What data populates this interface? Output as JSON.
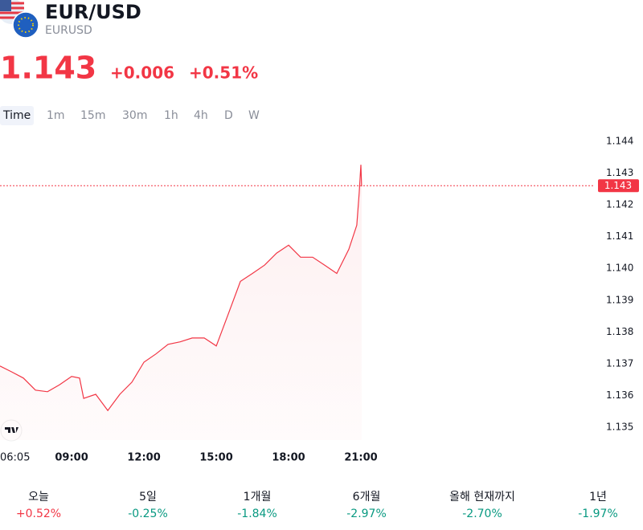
{
  "header": {
    "title": "EUR/USD",
    "symbol": "EURUSD",
    "price": "1.143",
    "change": "+0.006",
    "change_pct": "+0.51%"
  },
  "intervals": [
    "Time",
    "1m",
    "15m",
    "30m",
    "1h",
    "4h",
    "D",
    "W"
  ],
  "chart_data": {
    "type": "line",
    "x": [
      6.03,
      6.5,
      7,
      7.5,
      8,
      8.5,
      9,
      9.33,
      9.5,
      10,
      10.5,
      11,
      11.5,
      12,
      12.5,
      13,
      13.5,
      14,
      14.5,
      15,
      15.5,
      16,
      16.5,
      17,
      17.5,
      18,
      18.5,
      19,
      19.5,
      20,
      20.5,
      20.83,
      20.93,
      21.0,
      21.03
    ],
    "series": [
      {
        "color": "#f23645",
        "values": [
          1.13693,
          1.13675,
          1.13655,
          1.13617,
          1.13612,
          1.13634,
          1.1366,
          1.13655,
          1.13591,
          1.13604,
          1.13553,
          1.13604,
          1.13642,
          1.13705,
          1.13731,
          1.13761,
          1.13769,
          1.13781,
          1.13781,
          1.13756,
          1.13857,
          1.13959,
          1.13984,
          1.1401,
          1.14048,
          1.14073,
          1.14035,
          1.14035,
          1.1401,
          1.13984,
          1.1406,
          1.14136,
          1.14238,
          1.14326,
          1.14258
        ]
      }
    ],
    "xlim": [
      6.03,
      30.7
    ],
    "xticks": [
      {
        "value": 6.0833,
        "label": "06:05"
      },
      {
        "value": 9,
        "label": "09:00"
      },
      {
        "value": 12,
        "label": "12:00"
      },
      {
        "value": 15,
        "label": "15:00"
      },
      {
        "value": 18,
        "label": "18:00"
      },
      {
        "value": 21,
        "label": "21:00"
      }
    ],
    "ylim": [
      1.1346,
      1.1444
    ],
    "yticks": [
      1.135,
      1.136,
      1.137,
      1.138,
      1.139,
      {
        "value": 1.14,
        "label": "1.140"
      },
      1.141,
      1.142,
      1.143,
      1.144
    ],
    "last_value": 1.1426,
    "last_value_label": "1.143"
  },
  "periods": [
    {
      "label": "오늘",
      "change": "+0.52%"
    },
    {
      "label": "5일",
      "change": "-0.25%"
    },
    {
      "label": "1개월",
      "change": "-1.84%"
    },
    {
      "label": "6개월",
      "change": "-2.97%"
    },
    {
      "label": "올해 현재까지",
      "change": "-2.70%"
    },
    {
      "label": "1년",
      "change": "-1.97%"
    }
  ]
}
